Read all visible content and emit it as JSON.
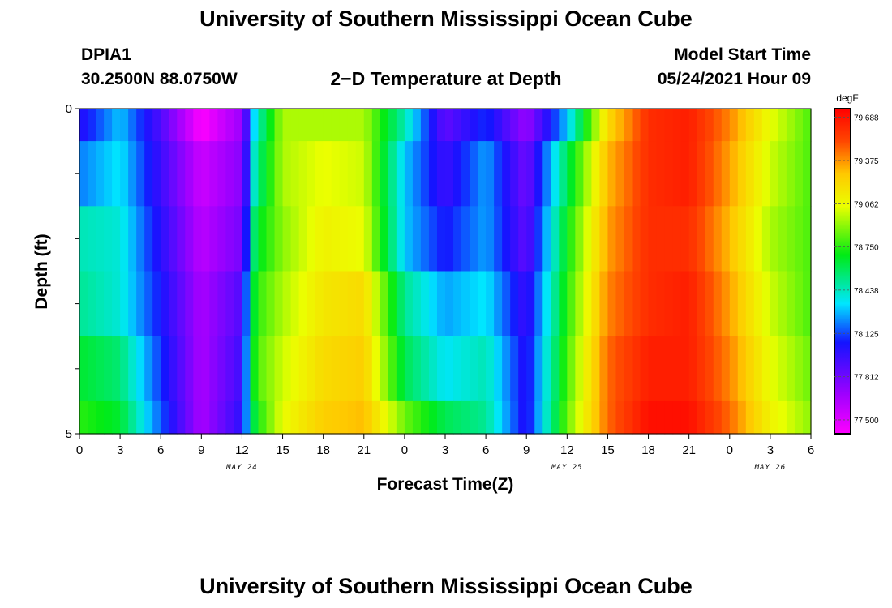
{
  "header": {
    "title": "University of Southern Mississippi Ocean Cube",
    "station_id": "DPIA1",
    "station_coords": "30.2500N  88.0750W",
    "plot_title": "2−D Temperature at Depth",
    "start_label": "Model Start Time",
    "start_value": "05/24/2021 Hour 09"
  },
  "footer": {
    "title": "University of Southern Mississippi Ocean Cube"
  },
  "chart_data": {
    "type": "heatmap",
    "title": "2−D Temperature at Depth",
    "xlabel": "Forecast Time(Z)",
    "ylabel": "Depth (ft)",
    "x_tick_labels": [
      "0",
      "3",
      "6",
      "9",
      "12",
      "15",
      "18",
      "21",
      "0",
      "3",
      "6",
      "9",
      "12",
      "15",
      "18",
      "21",
      "0",
      "3",
      "6"
    ],
    "date_labels": [
      {
        "label": "MAY 24",
        "at_tick": 4
      },
      {
        "label": "MAY 25",
        "at_tick": 12
      },
      {
        "label": "MAY 26",
        "at_tick": 17
      }
    ],
    "y_range": [
      0,
      5
    ],
    "y_tick_labels": [
      "0",
      "5"
    ],
    "colorbar": {
      "unit": "degF",
      "range": [
        77.4,
        79.75
      ],
      "tick_labels": [
        "79.688",
        "79.375",
        "79.062",
        "78.750",
        "78.438",
        "78.125",
        "77.812",
        "77.500"
      ],
      "tick_values": [
        79.688,
        79.375,
        79.062,
        78.75,
        78.438,
        78.125,
        77.812,
        77.5
      ]
    },
    "depth_levels_ft": [
      0.25,
      0.75,
      1.75,
      2.75,
      3.75,
      4.75
    ],
    "time_hours": [
      0,
      3,
      6,
      9,
      12,
      13,
      15,
      18,
      21,
      24,
      27,
      30,
      33,
      36,
      39,
      42,
      45,
      48,
      51,
      54
    ],
    "values_degF": [
      [
        78.0,
        78.3,
        77.9,
        77.4,
        77.7,
        78.4,
        78.95,
        78.95,
        78.95,
        78.45,
        77.85,
        78.1,
        77.7,
        78.3,
        79.2,
        79.6,
        79.65,
        79.4,
        79.05,
        78.8
      ],
      [
        78.2,
        78.35,
        77.95,
        77.55,
        77.75,
        78.5,
        78.95,
        79.05,
        79.0,
        78.3,
        77.95,
        78.25,
        77.8,
        78.6,
        79.3,
        79.6,
        79.65,
        79.35,
        79.0,
        78.8
      ],
      [
        78.45,
        78.4,
        78.0,
        77.6,
        77.8,
        78.65,
        78.9,
        79.1,
        79.05,
        78.3,
        78.05,
        78.25,
        77.85,
        78.7,
        79.35,
        79.6,
        79.6,
        79.3,
        78.95,
        78.8
      ],
      [
        78.5,
        78.4,
        78.05,
        77.65,
        77.9,
        78.75,
        78.95,
        79.15,
        79.2,
        78.5,
        78.25,
        78.35,
        77.95,
        78.75,
        79.4,
        79.6,
        79.65,
        79.35,
        79.0,
        78.8
      ],
      [
        78.65,
        78.55,
        78.1,
        77.65,
        77.95,
        78.8,
        79.0,
        79.2,
        79.25,
        78.6,
        78.35,
        78.45,
        78.0,
        78.8,
        79.45,
        79.65,
        79.65,
        79.4,
        79.05,
        78.85
      ],
      [
        78.75,
        78.65,
        78.15,
        77.65,
        78.0,
        78.7,
        79.05,
        79.25,
        79.3,
        78.85,
        78.6,
        78.5,
        78.0,
        78.85,
        79.45,
        79.7,
        79.7,
        79.45,
        79.1,
        78.9
      ]
    ]
  }
}
